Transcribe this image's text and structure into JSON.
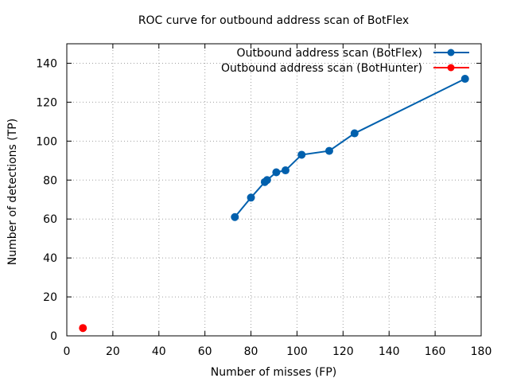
{
  "chart_data": {
    "type": "line",
    "title": "ROC curve for outbound address scan of BotFlex",
    "xlabel": "Number of misses (FP)",
    "ylabel": "Number of detections (TP)",
    "xlim": [
      0,
      180
    ],
    "ylim": [
      0,
      150
    ],
    "xticks": [
      0,
      20,
      40,
      60,
      80,
      100,
      120,
      140,
      160,
      180
    ],
    "yticks": [
      0,
      20,
      40,
      60,
      80,
      100,
      120,
      140
    ],
    "grid": true,
    "legend_position": "top-right",
    "series": [
      {
        "name": "Outbound address scan (BotFlex)",
        "color": "#0060ad",
        "marker": "circle",
        "line": true,
        "points": [
          [
            73,
            61
          ],
          [
            80,
            71
          ],
          [
            86,
            79
          ],
          [
            87,
            80
          ],
          [
            91,
            84
          ],
          [
            95,
            85
          ],
          [
            102,
            93
          ],
          [
            114,
            95
          ],
          [
            125,
            104
          ],
          [
            173,
            132
          ]
        ]
      },
      {
        "name": "Outbound address scan (BotHunter)",
        "color": "#ff0000",
        "marker": "circle",
        "line": false,
        "points": [
          [
            7,
            4
          ]
        ]
      }
    ]
  }
}
